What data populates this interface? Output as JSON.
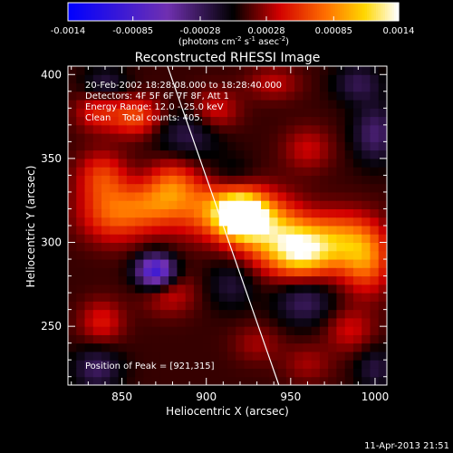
{
  "chart_data": {
    "type": "heatmap",
    "title": "Reconstructed RHESSI Image",
    "xlabel": "Heliocentric X (arcsec)",
    "ylabel": "Heliocentric Y (arcsec)",
    "xlim": [
      818,
      1007
    ],
    "ylim": [
      215,
      405
    ],
    "xticks": [
      850,
      900,
      950,
      1000
    ],
    "yticks": [
      250,
      300,
      350,
      400
    ],
    "colorbar": {
      "range": [
        -0.0014,
        0.0014
      ],
      "ticks": [
        "-0.0014",
        "-0.00085",
        "-0.00028",
        "0.00028",
        "0.00085",
        "0.0014"
      ],
      "label": "(photons cm",
      "label_sup1": "-2",
      "label_mid": " s",
      "label_sup2": "-1",
      "label_mid2": " asec",
      "label_sup3": "-2",
      "label_end": ")"
    },
    "annotations": [
      "20-Feb-2002 18:28:08.000 to 18:28:40.000",
      "Detectors: 4F 5F 6F 7F 8F, Att 1",
      "Energy Range: 12.0 - 25.0 keV",
      "Clean    Total counts: 405."
    ],
    "peak_label": "Position of Peak = [921,315]",
    "peak": [
      921,
      315
    ],
    "limb_x_at_ymax": 877,
    "limb_x_at_ymin": 943,
    "sources": [
      {
        "x": 921,
        "y": 316,
        "value": 0.0014,
        "sx": 10,
        "sy": 9
      },
      {
        "x": 905,
        "y": 320,
        "value": 0.0007,
        "sx": 18,
        "sy": 12
      },
      {
        "x": 938,
        "y": 306,
        "value": 0.0008,
        "sx": 14,
        "sy": 14
      },
      {
        "x": 956,
        "y": 295,
        "value": 0.00095,
        "sx": 12,
        "sy": 11
      },
      {
        "x": 978,
        "y": 300,
        "value": 0.00075,
        "sx": 14,
        "sy": 12
      },
      {
        "x": 995,
        "y": 290,
        "value": 0.0006,
        "sx": 10,
        "sy": 14
      },
      {
        "x": 845,
        "y": 318,
        "value": 0.0006,
        "sx": 14,
        "sy": 12
      },
      {
        "x": 838,
        "y": 340,
        "value": 0.00045,
        "sx": 10,
        "sy": 10
      },
      {
        "x": 868,
        "y": 322,
        "value": 0.00045,
        "sx": 12,
        "sy": 10
      },
      {
        "x": 880,
        "y": 335,
        "value": 0.0005,
        "sx": 10,
        "sy": 10
      },
      {
        "x": 858,
        "y": 375,
        "value": 0.00055,
        "sx": 11,
        "sy": 8
      },
      {
        "x": 835,
        "y": 378,
        "value": 0.00035,
        "sx": 9,
        "sy": 8
      },
      {
        "x": 905,
        "y": 378,
        "value": 0.00035,
        "sx": 10,
        "sy": 9
      },
      {
        "x": 960,
        "y": 356,
        "value": 0.00028,
        "sx": 10,
        "sy": 9
      },
      {
        "x": 940,
        "y": 395,
        "value": 0.00025,
        "sx": 11,
        "sy": 7
      },
      {
        "x": 878,
        "y": 270,
        "value": 0.0003,
        "sx": 11,
        "sy": 9
      },
      {
        "x": 838,
        "y": 253,
        "value": 0.00035,
        "sx": 9,
        "sy": 9
      },
      {
        "x": 985,
        "y": 248,
        "value": 0.0003,
        "sx": 10,
        "sy": 9
      },
      {
        "x": 930,
        "y": 240,
        "value": 0.0002,
        "sx": 10,
        "sy": 8
      },
      {
        "x": 960,
        "y": 228,
        "value": 0.0002,
        "sx": 10,
        "sy": 8
      },
      {
        "x": 870,
        "y": 283,
        "value": -0.0011,
        "sx": 8,
        "sy": 7
      },
      {
        "x": 890,
        "y": 365,
        "value": -0.00035,
        "sx": 14,
        "sy": 10
      },
      {
        "x": 840,
        "y": 395,
        "value": -0.0003,
        "sx": 9,
        "sy": 7
      },
      {
        "x": 915,
        "y": 340,
        "value": -0.0002,
        "sx": 10,
        "sy": 8
      },
      {
        "x": 1000,
        "y": 365,
        "value": -0.00045,
        "sx": 9,
        "sy": 12
      },
      {
        "x": 958,
        "y": 265,
        "value": -0.0004,
        "sx": 12,
        "sy": 10
      },
      {
        "x": 835,
        "y": 225,
        "value": -0.0004,
        "sx": 10,
        "sy": 9
      },
      {
        "x": 915,
        "y": 275,
        "value": -0.00028,
        "sx": 10,
        "sy": 10
      },
      {
        "x": 990,
        "y": 395,
        "value": -0.00035,
        "sx": 10,
        "sy": 8
      },
      {
        "x": 1000,
        "y": 225,
        "value": -0.0003,
        "sx": 8,
        "sy": 9
      }
    ]
  },
  "footer": {
    "date": "11-Apr-2013 21:51"
  }
}
